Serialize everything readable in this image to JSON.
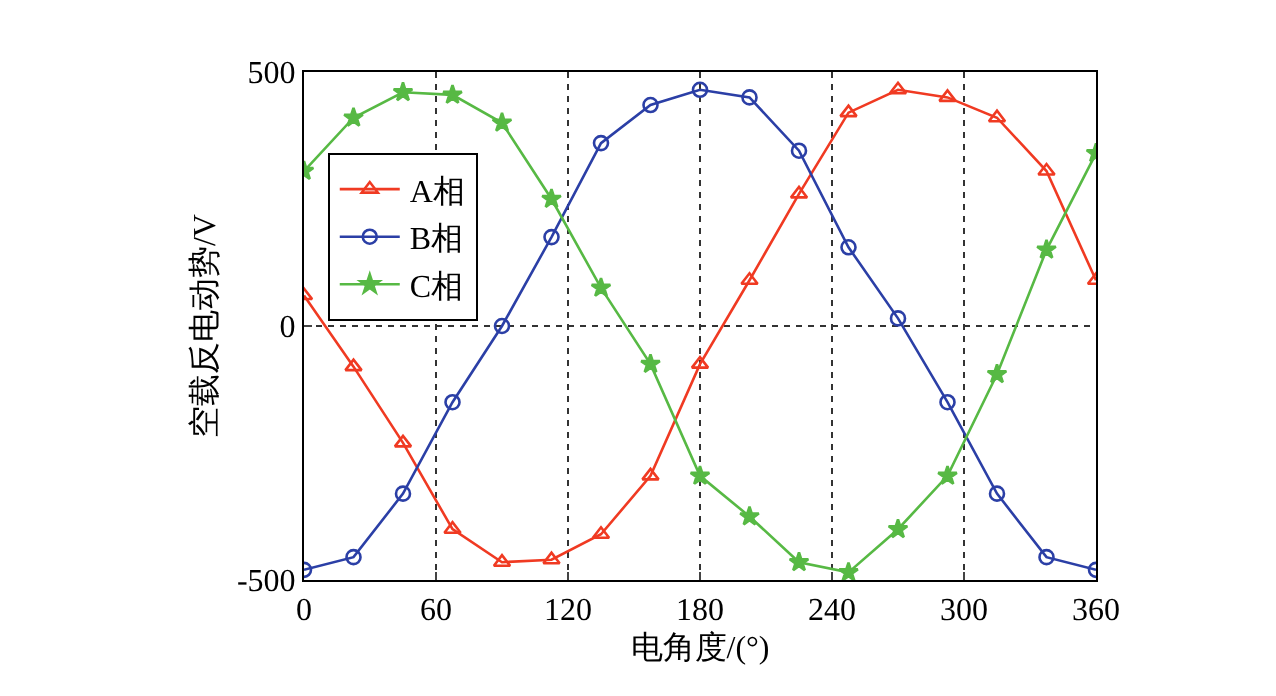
{
  "chart_data": {
    "type": "line",
    "xlabel": "电角度/(°)",
    "ylabel": "空载反电动势/V",
    "x": [
      0,
      22.5,
      45,
      67.5,
      90,
      112.5,
      135,
      157.5,
      180,
      202.5,
      225,
      247.5,
      270,
      292.5,
      315,
      337.5,
      360
    ],
    "xlim": [
      0,
      360
    ],
    "xticks": [
      0,
      60,
      120,
      180,
      240,
      300,
      360
    ],
    "ylim": [
      -500,
      500
    ],
    "yticks": [
      -500,
      0,
      500
    ],
    "grid": true,
    "legend": "top left",
    "line_style": "solid",
    "series": [
      {
        "name": "A相",
        "color": "#f03a22",
        "marker": "triangle",
        "values": [
          60,
          -80,
          -230,
          -400,
          -465,
          -460,
          -410,
          -295,
          -75,
          90,
          260,
          420,
          465,
          450,
          410,
          305,
          90
        ]
      },
      {
        "name": "B相",
        "color": "#2b3fa6",
        "marker": "circle",
        "values": [
          -480,
          -455,
          -330,
          -150,
          0,
          175,
          360,
          435,
          465,
          450,
          345,
          155,
          15,
          -150,
          -330,
          -455,
          -480
        ]
      },
      {
        "name": "C相",
        "color": "#57b944",
        "marker": "star",
        "values": [
          305,
          410,
          460,
          455,
          400,
          250,
          75,
          -75,
          -295,
          -375,
          -465,
          -485,
          -400,
          -295,
          -95,
          150,
          340
        ]
      }
    ]
  }
}
